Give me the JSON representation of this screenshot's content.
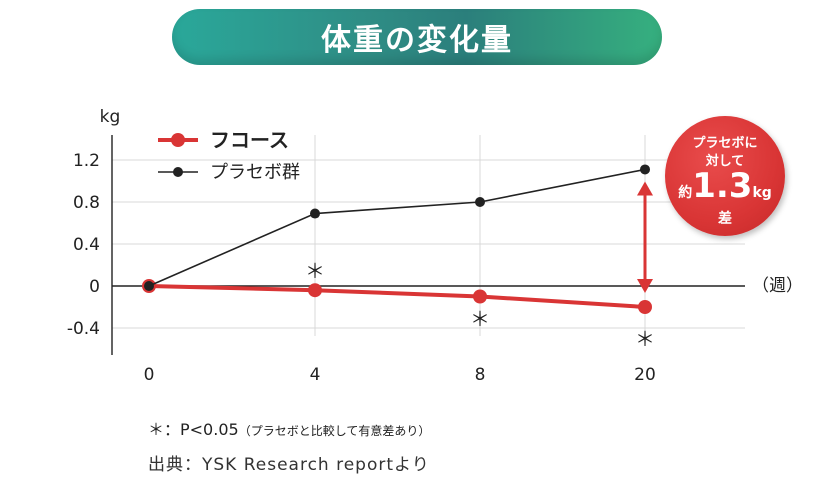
{
  "header": {
    "title": "体重の変化量"
  },
  "chart_data": {
    "type": "line",
    "ylabel": "kg",
    "xunit": "（週）",
    "categories": [
      "0",
      "4",
      "8",
      "20"
    ],
    "ylim": [
      -0.4,
      1.2
    ],
    "yticks": [
      "1.2",
      "0.8",
      "0.4",
      "0",
      "-0.4"
    ],
    "grid": true,
    "legend_position": "top-left",
    "series": [
      {
        "name": "フコース",
        "color": "#d93535",
        "values": [
          0,
          -0.04,
          -0.1,
          -0.2
        ]
      },
      {
        "name": "プラセボ群",
        "color": "#222222",
        "values": [
          0,
          0.69,
          0.8,
          1.11
        ]
      }
    ],
    "significance_marks": [
      "＊",
      "＊",
      "＊"
    ],
    "difference_callout": {
      "line1": "プラセボに",
      "line2": "対して",
      "prefix": "約",
      "value": "1.3",
      "unit": "kg",
      "line4": "差"
    }
  },
  "footnote": {
    "main": "＊：P<0.05",
    "small": "（プラセボと比較して有意差あり）"
  },
  "source": "出典：YSK Research reportより"
}
